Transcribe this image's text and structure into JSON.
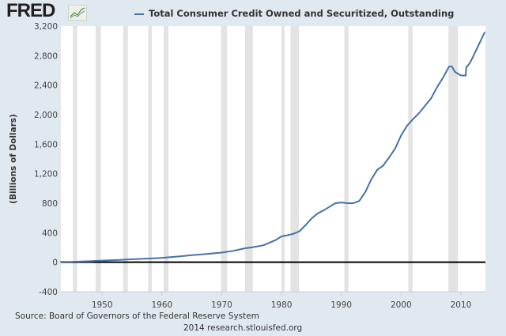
{
  "logo": {
    "text": "FRED",
    "icon": "line-chart-icon"
  },
  "chart_data": {
    "type": "line",
    "title": "Total Consumer Credit Owned and Securitized, Outstanding",
    "ylabel": "(Billions of Dollars)",
    "xlabel": "",
    "ylim": [
      -400,
      3200
    ],
    "xlim": [
      1943.1,
      2014.1
    ],
    "yticks": [
      "-400",
      "0",
      "400",
      "800",
      "1,200",
      "1,600",
      "2,000",
      "2,400",
      "2,800",
      "3,200"
    ],
    "ytick_values": [
      -400,
      0,
      400,
      800,
      1200,
      1600,
      2000,
      2400,
      2800,
      3200
    ],
    "xticks": [
      "1950",
      "1960",
      "1970",
      "1980",
      "1990",
      "2000",
      "2010"
    ],
    "xtick_values": [
      1950,
      1960,
      1970,
      1980,
      1990,
      2000,
      2010
    ],
    "recessions": [
      [
        1945.1,
        1945.8
      ],
      [
        1948.9,
        1949.8
      ],
      [
        1953.5,
        1954.3
      ],
      [
        1957.7,
        1958.3
      ],
      [
        1960.3,
        1961.1
      ],
      [
        1969.9,
        1970.9
      ],
      [
        1973.9,
        1975.2
      ],
      [
        1980.0,
        1980.5
      ],
      [
        1981.5,
        1982.9
      ],
      [
        1990.5,
        1991.2
      ],
      [
        2001.2,
        2001.9
      ],
      [
        2007.9,
        2009.5
      ]
    ],
    "series": [
      {
        "name": "Total Consumer Credit Owned and Securitized, Outstanding",
        "color": "#4572a7",
        "x": [
          1943,
          1945,
          1948,
          1950,
          1953,
          1955,
          1958,
          1960,
          1963,
          1965,
          1968,
          1970,
          1972,
          1974,
          1975,
          1977,
          1979,
          1980,
          1981,
          1982,
          1983,
          1984,
          1985,
          1986,
          1987,
          1988,
          1989,
          1990,
          1991,
          1992,
          1993,
          1994,
          1995,
          1996,
          1997,
          1998,
          1999,
          2000,
          2001,
          2002,
          2003,
          2004,
          2005,
          2006,
          2007,
          2008,
          2008.5,
          2009,
          2010,
          2010.8,
          2010.9,
          2011.5,
          2012,
          2013,
          2014
        ],
        "values": [
          5,
          6,
          14,
          22,
          31,
          40,
          50,
          60,
          80,
          95,
          115,
          130,
          155,
          190,
          200,
          230,
          300,
          350,
          365,
          385,
          420,
          500,
          590,
          660,
          700,
          750,
          800,
          810,
          800,
          800,
          830,
          950,
          1120,
          1250,
          1310,
          1420,
          1540,
          1720,
          1850,
          1940,
          2020,
          2120,
          2220,
          2370,
          2500,
          2650,
          2650,
          2580,
          2530,
          2530,
          2640,
          2700,
          2780,
          2950,
          3120
        ]
      }
    ]
  },
  "source": "Source: Board of Governors of the Federal Reserve System",
  "credit": "2014 research.stlouisfed.org"
}
